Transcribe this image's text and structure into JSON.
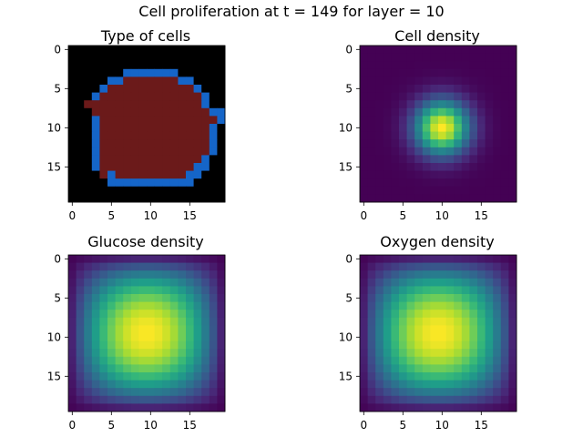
{
  "figure": {
    "title": "Cell proliferation at t = 149 for layer = 10"
  },
  "chart_data": [
    {
      "type": "heatmap",
      "title": "Type of cells",
      "grid_size": 20,
      "x_ticks": [
        0,
        5,
        10,
        15
      ],
      "y_ticks": [
        0,
        5,
        10,
        15
      ],
      "colormap": {
        "0": "#000000",
        "1": "#1565c8",
        "2": "#6b1a1a"
      },
      "rows": [
        "00000000000000000000",
        "00000000000000000000",
        "00000000000000000000",
        "00000001111111000000",
        "00000112222222110000",
        "00001222222222221000",
        "00012222222222222100",
        "00222222222222222100",
        "00022222222222222211",
        "00012222222222222221",
        "00012222222222222210",
        "00012222222222222210",
        "00012222222222222210",
        "00012222222222222210",
        "00012222222222222100",
        "00012222222222221100",
        "00002122222222211000",
        "00000111111111110000",
        "00000000000000000000",
        "00000000000000000000"
      ]
    },
    {
      "type": "heatmap",
      "title": "Cell density",
      "grid_size": 20,
      "x_ticks": [
        0,
        5,
        10,
        15
      ],
      "y_ticks": [
        0,
        5,
        10,
        15
      ],
      "colormap": "viridis",
      "model": {
        "shape": "gaussian",
        "center": [
          10,
          10
        ],
        "sigma": 2.4,
        "min": 0,
        "max": 1
      }
    },
    {
      "type": "heatmap",
      "title": "Glucose density",
      "grid_size": 20,
      "x_ticks": [
        0,
        5,
        10,
        15
      ],
      "y_ticks": [
        0,
        5,
        10,
        15
      ],
      "colormap": "viridis",
      "model": {
        "shape": "sine-product",
        "center": [
          9.5,
          9.5
        ],
        "min": 0,
        "max": 1
      }
    },
    {
      "type": "heatmap",
      "title": "Oxygen density",
      "grid_size": 20,
      "x_ticks": [
        0,
        5,
        10,
        15
      ],
      "y_ticks": [
        0,
        5,
        10,
        15
      ],
      "colormap": "viridis",
      "model": {
        "shape": "sine-product",
        "center": [
          9.5,
          9.5
        ],
        "min": 0,
        "max": 1
      }
    }
  ]
}
